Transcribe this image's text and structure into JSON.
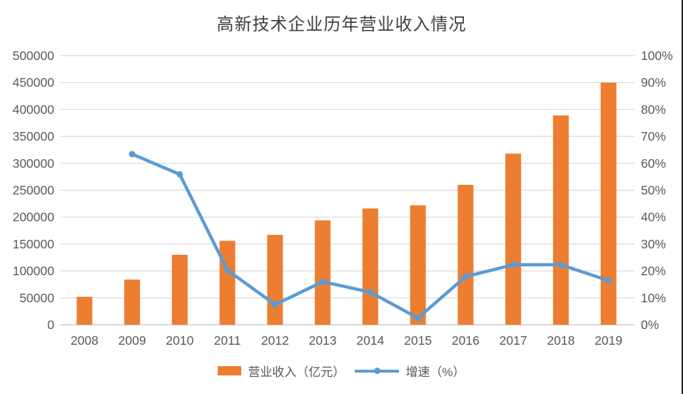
{
  "page": {
    "background": "#ffffff",
    "right_border_color": "#262626"
  },
  "chart_data": {
    "type": "bar",
    "subtype": "combo-bar-line-dual-axis",
    "title": "高新技术企业历年营业收入情况",
    "categories": [
      "2008",
      "2009",
      "2010",
      "2011",
      "2012",
      "2013",
      "2014",
      "2015",
      "2016",
      "2017",
      "2018",
      "2019"
    ],
    "series": [
      {
        "name": "营业收入（亿元）",
        "type": "bar",
        "axis": "left",
        "color": "#ED7D31",
        "values": [
          52000,
          84000,
          130000,
          156000,
          167000,
          194000,
          216000,
          222000,
          260000,
          318000,
          389000,
          450000
        ]
      },
      {
        "name": "增速（%）",
        "type": "line",
        "axis": "right",
        "color": "#5B9BD5",
        "values": [
          null,
          63.4,
          55.9,
          20.3,
          7.5,
          16.0,
          12.1,
          2.5,
          17.9,
          22.3,
          22.3,
          16.4
        ]
      }
    ],
    "left_axis": {
      "min": 0,
      "max": 500000,
      "step": 50000,
      "tick_labels": [
        "0",
        "50000",
        "100000",
        "150000",
        "200000",
        "250000",
        "300000",
        "350000",
        "400000",
        "450000",
        "500000"
      ]
    },
    "right_axis": {
      "min": 0,
      "max": 100,
      "step": 10,
      "tick_labels": [
        "0%",
        "10%",
        "20%",
        "30%",
        "40%",
        "50%",
        "60%",
        "70%",
        "80%",
        "90%",
        "100%"
      ]
    },
    "grid": true,
    "gridline_color": "#D9D9D9",
    "axis_text_color": "#595959",
    "legend_position": "bottom"
  },
  "legend": {
    "bar_label": "营业收入（亿元）",
    "line_label": "增速（%）"
  }
}
